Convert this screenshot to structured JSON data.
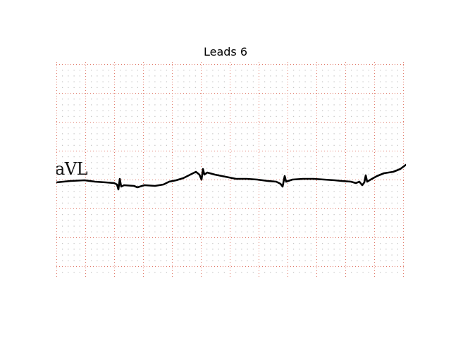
{
  "figure": {
    "title": "Leads 6"
  },
  "ecg": {
    "lead_label": "aVL",
    "grid_color": "#e07a6a",
    "dot_color": "#555555",
    "trace_color": "#000000"
  }
}
